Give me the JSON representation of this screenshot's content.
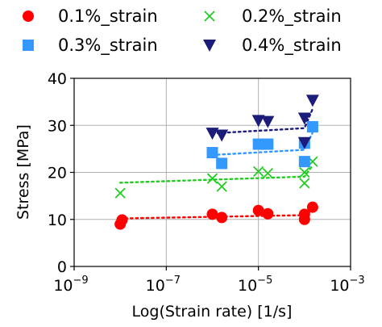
{
  "chart_data": {
    "type": "scatter",
    "xlabel": "Log(Strain rate) [1/s]",
    "ylabel": "Stress [MPa]",
    "xscale": "log",
    "xlim": [
      1e-09,
      0.001
    ],
    "ylim": [
      0,
      40
    ],
    "xticks": [
      1e-09,
      1e-07,
      1e-05,
      0.001
    ],
    "xtick_labels": [
      {
        "base": "10",
        "exp": "−9"
      },
      {
        "base": "10",
        "exp": "−7"
      },
      {
        "base": "10",
        "exp": "−5"
      },
      {
        "base": "10",
        "exp": "−3"
      }
    ],
    "yticks": [
      0,
      10,
      20,
      30,
      40
    ],
    "ytick_labels": [
      "0",
      "10",
      "20",
      "30",
      "40"
    ],
    "grid": true,
    "legend": "top",
    "series": [
      {
        "name": "0.1%_strain",
        "marker": "circle",
        "color": "#ff0000",
        "points": [
          {
            "x": 1e-08,
            "y": 9.0
          },
          {
            "x": 1.1e-08,
            "y": 9.9
          },
          {
            "x": 1e-06,
            "y": 11.1
          },
          {
            "x": 1.6e-06,
            "y": 10.4
          },
          {
            "x": 1e-05,
            "y": 11.9
          },
          {
            "x": 1.6e-05,
            "y": 11.2
          },
          {
            "x": 0.0001,
            "y": 10.0
          },
          {
            "x": 0.0001,
            "y": 11.1
          },
          {
            "x": 0.00015,
            "y": 12.6
          }
        ],
        "trend": [
          {
            "x": 1e-08,
            "y": 10.2
          },
          {
            "x": 0.0001,
            "y": 10.9
          },
          {
            "x": 0.00015,
            "y": 12.0
          }
        ]
      },
      {
        "name": "0.2%_strain",
        "marker": "x",
        "color": "#22cc22",
        "points": [
          {
            "x": 1e-08,
            "y": 15.6
          },
          {
            "x": 1e-06,
            "y": 18.7
          },
          {
            "x": 1.6e-06,
            "y": 17.0
          },
          {
            "x": 1e-05,
            "y": 20.2
          },
          {
            "x": 1.6e-05,
            "y": 19.8
          },
          {
            "x": 0.0001,
            "y": 17.7
          },
          {
            "x": 0.0001,
            "y": 20.0
          },
          {
            "x": 0.00015,
            "y": 22.3
          }
        ],
        "trend": [
          {
            "x": 1e-08,
            "y": 17.8
          },
          {
            "x": 0.0001,
            "y": 19.1
          },
          {
            "x": 0.00015,
            "y": 21.5
          }
        ]
      },
      {
        "name": "0.3%_strain",
        "marker": "square",
        "color": "#3399ff",
        "points": [
          {
            "x": 1e-06,
            "y": 24.2
          },
          {
            "x": 1.6e-06,
            "y": 21.9
          },
          {
            "x": 1e-05,
            "y": 26.0
          },
          {
            "x": 1.6e-05,
            "y": 26.0
          },
          {
            "x": 0.0001,
            "y": 22.3
          },
          {
            "x": 0.0001,
            "y": 26.2
          },
          {
            "x": 0.00015,
            "y": 29.7
          }
        ],
        "trend": [
          {
            "x": 1e-06,
            "y": 23.7
          },
          {
            "x": 0.0001,
            "y": 24.8
          },
          {
            "x": 0.00015,
            "y": 28.5
          }
        ]
      },
      {
        "name": "0.4%_strain",
        "marker": "triangle-down",
        "color": "#1c1c7a",
        "points": [
          {
            "x": 1e-06,
            "y": 28.3
          },
          {
            "x": 1.6e-06,
            "y": 27.9
          },
          {
            "x": 1e-05,
            "y": 31.0
          },
          {
            "x": 1.6e-05,
            "y": 30.8
          },
          {
            "x": 0.0001,
            "y": 26.3
          },
          {
            "x": 0.0001,
            "y": 31.5
          },
          {
            "x": 0.00015,
            "y": 35.3
          }
        ],
        "trend": [
          {
            "x": 1e-06,
            "y": 28.3
          },
          {
            "x": 0.0001,
            "y": 29.4
          },
          {
            "x": 0.00015,
            "y": 33.5
          }
        ]
      }
    ]
  }
}
